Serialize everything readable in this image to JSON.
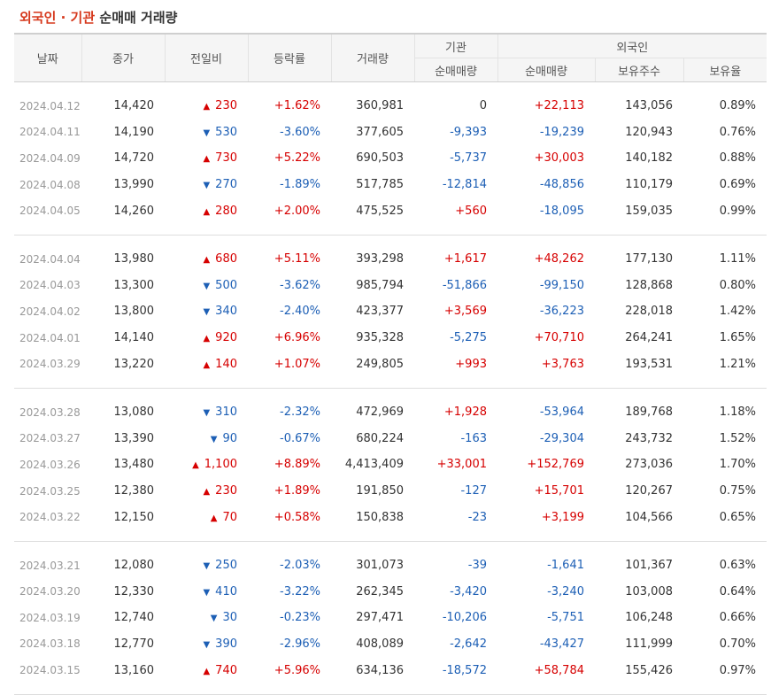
{
  "title": {
    "part1": "외국인 · 기관",
    "part2": "순매매 거래량"
  },
  "headers": {
    "date": "날짜",
    "close": "종가",
    "change": "전일비",
    "rate": "등락률",
    "volume": "거래량",
    "institution": "기관",
    "foreign": "외국인",
    "inst_net": "순매매량",
    "foreign_net": "순매매량",
    "holdings": "보유주수",
    "holding_ratio": "보유율"
  },
  "colors": {
    "up": "#d60000",
    "down": "#1d5fb5",
    "title_accent": "#d6381c"
  },
  "groups": [
    [
      {
        "date": "2024.04.12",
        "close": "14,420",
        "dir": "up",
        "change": "230",
        "rate": "+1.62%",
        "volume": "360,981",
        "inst": "0",
        "foreign": "+22,113",
        "holdings": "143,056",
        "ratio": "0.89%"
      },
      {
        "date": "2024.04.11",
        "close": "14,190",
        "dir": "down",
        "change": "530",
        "rate": "-3.60%",
        "volume": "377,605",
        "inst": "-9,393",
        "foreign": "-19,239",
        "holdings": "120,943",
        "ratio": "0.76%"
      },
      {
        "date": "2024.04.09",
        "close": "14,720",
        "dir": "up",
        "change": "730",
        "rate": "+5.22%",
        "volume": "690,503",
        "inst": "-5,737",
        "foreign": "+30,003",
        "holdings": "140,182",
        "ratio": "0.88%"
      },
      {
        "date": "2024.04.08",
        "close": "13,990",
        "dir": "down",
        "change": "270",
        "rate": "-1.89%",
        "volume": "517,785",
        "inst": "-12,814",
        "foreign": "-48,856",
        "holdings": "110,179",
        "ratio": "0.69%"
      },
      {
        "date": "2024.04.05",
        "close": "14,260",
        "dir": "up",
        "change": "280",
        "rate": "+2.00%",
        "volume": "475,525",
        "inst": "+560",
        "foreign": "-18,095",
        "holdings": "159,035",
        "ratio": "0.99%"
      }
    ],
    [
      {
        "date": "2024.04.04",
        "close": "13,980",
        "dir": "up",
        "change": "680",
        "rate": "+5.11%",
        "volume": "393,298",
        "inst": "+1,617",
        "foreign": "+48,262",
        "holdings": "177,130",
        "ratio": "1.11%"
      },
      {
        "date": "2024.04.03",
        "close": "13,300",
        "dir": "down",
        "change": "500",
        "rate": "-3.62%",
        "volume": "985,794",
        "inst": "-51,866",
        "foreign": "-99,150",
        "holdings": "128,868",
        "ratio": "0.80%"
      },
      {
        "date": "2024.04.02",
        "close": "13,800",
        "dir": "down",
        "change": "340",
        "rate": "-2.40%",
        "volume": "423,377",
        "inst": "+3,569",
        "foreign": "-36,223",
        "holdings": "228,018",
        "ratio": "1.42%"
      },
      {
        "date": "2024.04.01",
        "close": "14,140",
        "dir": "up",
        "change": "920",
        "rate": "+6.96%",
        "volume": "935,328",
        "inst": "-5,275",
        "foreign": "+70,710",
        "holdings": "264,241",
        "ratio": "1.65%"
      },
      {
        "date": "2024.03.29",
        "close": "13,220",
        "dir": "up",
        "change": "140",
        "rate": "+1.07%",
        "volume": "249,805",
        "inst": "+993",
        "foreign": "+3,763",
        "holdings": "193,531",
        "ratio": "1.21%"
      }
    ],
    [
      {
        "date": "2024.03.28",
        "close": "13,080",
        "dir": "down",
        "change": "310",
        "rate": "-2.32%",
        "volume": "472,969",
        "inst": "+1,928",
        "foreign": "-53,964",
        "holdings": "189,768",
        "ratio": "1.18%"
      },
      {
        "date": "2024.03.27",
        "close": "13,390",
        "dir": "down",
        "change": "90",
        "rate": "-0.67%",
        "volume": "680,224",
        "inst": "-163",
        "foreign": "-29,304",
        "holdings": "243,732",
        "ratio": "1.52%"
      },
      {
        "date": "2024.03.26",
        "close": "13,480",
        "dir": "up",
        "change": "1,100",
        "rate": "+8.89%",
        "volume": "4,413,409",
        "inst": "+33,001",
        "foreign": "+152,769",
        "holdings": "273,036",
        "ratio": "1.70%"
      },
      {
        "date": "2024.03.25",
        "close": "12,380",
        "dir": "up",
        "change": "230",
        "rate": "+1.89%",
        "volume": "191,850",
        "inst": "-127",
        "foreign": "+15,701",
        "holdings": "120,267",
        "ratio": "0.75%"
      },
      {
        "date": "2024.03.22",
        "close": "12,150",
        "dir": "up",
        "change": "70",
        "rate": "+0.58%",
        "volume": "150,838",
        "inst": "-23",
        "foreign": "+3,199",
        "holdings": "104,566",
        "ratio": "0.65%"
      }
    ],
    [
      {
        "date": "2024.03.21",
        "close": "12,080",
        "dir": "down",
        "change": "250",
        "rate": "-2.03%",
        "volume": "301,073",
        "inst": "-39",
        "foreign": "-1,641",
        "holdings": "101,367",
        "ratio": "0.63%"
      },
      {
        "date": "2024.03.20",
        "close": "12,330",
        "dir": "down",
        "change": "410",
        "rate": "-3.22%",
        "volume": "262,345",
        "inst": "-3,420",
        "foreign": "-3,240",
        "holdings": "103,008",
        "ratio": "0.64%"
      },
      {
        "date": "2024.03.19",
        "close": "12,740",
        "dir": "down",
        "change": "30",
        "rate": "-0.23%",
        "volume": "297,471",
        "inst": "-10,206",
        "foreign": "-5,751",
        "holdings": "106,248",
        "ratio": "0.66%"
      },
      {
        "date": "2024.03.18",
        "close": "12,770",
        "dir": "down",
        "change": "390",
        "rate": "-2.96%",
        "volume": "408,089",
        "inst": "-2,642",
        "foreign": "-43,427",
        "holdings": "111,999",
        "ratio": "0.70%"
      },
      {
        "date": "2024.03.15",
        "close": "13,160",
        "dir": "up",
        "change": "740",
        "rate": "+5.96%",
        "volume": "634,136",
        "inst": "-18,572",
        "foreign": "+58,784",
        "holdings": "155,426",
        "ratio": "0.97%"
      }
    ]
  ]
}
